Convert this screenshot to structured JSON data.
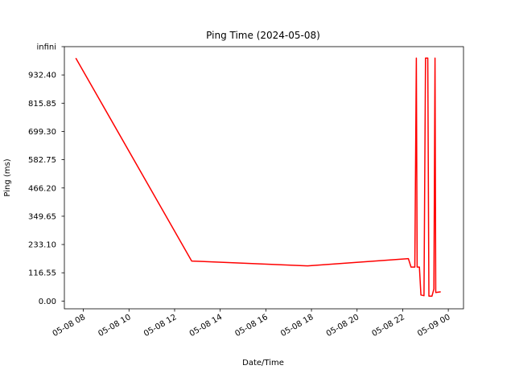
{
  "chart_data": {
    "type": "line",
    "title": "Ping Time (2024-05-08)",
    "xlabel": "Date/Time",
    "ylabel": "Ping (ms)",
    "xlim": [
      "2024-05-08 07:10",
      "2024-05-09 00:40"
    ],
    "ylim": [
      -32,
      1049
    ],
    "grid": false,
    "x_ticks": [
      "05-08 08",
      "05-08 10",
      "05-08 12",
      "05-08 14",
      "05-08 16",
      "05-08 18",
      "05-08 20",
      "05-08 22",
      "05-09 00"
    ],
    "x_tick_times": [
      "2024-05-08 08:00",
      "2024-05-08 10:00",
      "2024-05-08 12:00",
      "2024-05-08 14:00",
      "2024-05-08 16:00",
      "2024-05-08 18:00",
      "2024-05-08 20:00",
      "2024-05-08 22:00",
      "2024-05-09 00:00"
    ],
    "y_ticks": [
      "0.00",
      "116.55",
      "233.10",
      "349.65",
      "466.20",
      "582.75",
      "699.30",
      "815.85",
      "932.40",
      "infini"
    ],
    "y_tick_values": [
      0,
      116.55,
      233.1,
      349.65,
      466.2,
      582.75,
      699.3,
      815.85,
      932.4,
      1049
    ],
    "series": [
      {
        "color": "#ff0000",
        "points": [
          {
            "x": "2024-05-08 07:40",
            "y": 1002
          },
          {
            "x": "2024-05-08 12:45",
            "y": 165
          },
          {
            "x": "2024-05-08 17:50",
            "y": 145
          },
          {
            "x": "2024-05-08 22:15",
            "y": 175
          },
          {
            "x": "2024-05-08 22:22",
            "y": 140
          },
          {
            "x": "2024-05-08 22:32",
            "y": 140
          },
          {
            "x": "2024-05-08 22:36",
            "y": 1002
          },
          {
            "x": "2024-05-08 22:38",
            "y": 140
          },
          {
            "x": "2024-05-08 22:44",
            "y": 140
          },
          {
            "x": "2024-05-08 22:48",
            "y": 25
          },
          {
            "x": "2024-05-08 22:56",
            "y": 22
          },
          {
            "x": "2024-05-08 23:00",
            "y": 1002
          },
          {
            "x": "2024-05-08 23:06",
            "y": 1002
          },
          {
            "x": "2024-05-08 23:09",
            "y": 20
          },
          {
            "x": "2024-05-08 23:17",
            "y": 20
          },
          {
            "x": "2024-05-08 23:22",
            "y": 50
          },
          {
            "x": "2024-05-08 23:25",
            "y": 1002
          },
          {
            "x": "2024-05-08 23:27",
            "y": 35
          },
          {
            "x": "2024-05-08 23:40",
            "y": 38
          }
        ]
      }
    ]
  }
}
